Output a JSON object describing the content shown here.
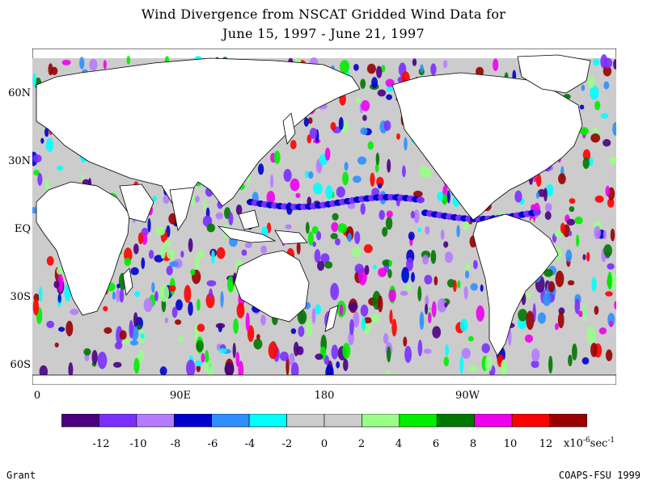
{
  "title_line1": "Wind Divergence from NSCAT Gridded Wind Data for",
  "title_line2": "June 15, 1997 - June 21, 1997",
  "lat_labels": [
    "60N",
    "30N",
    "EQ",
    "30S",
    "60S"
  ],
  "lon_labels": [
    "0",
    "90E",
    "180",
    "90W"
  ],
  "colorbar": {
    "colors": [
      "#4b0082",
      "#7b2fff",
      "#b57bff",
      "#0000cd",
      "#2f8fff",
      "#00ffff",
      "#cccccc",
      "#cccccc",
      "#99ff88",
      "#00ee00",
      "#007700",
      "#ee00ee",
      "#ff0000",
      "#990000"
    ],
    "labels": [
      "-12",
      "-10",
      "-8",
      "-6",
      "-4",
      "-2",
      "0",
      "2",
      "4",
      "6",
      "8",
      "10",
      "12"
    ]
  },
  "units": {
    "base": "x10",
    "exp": "-6",
    "unit": "sec",
    "unit_exp": "-1"
  },
  "footer_left": "Grant",
  "footer_right": "COAPS-FSU 1999",
  "map_colors": {
    "land": "#ffffff",
    "ocean_base": "#cccccc",
    "coast": "#000000"
  }
}
